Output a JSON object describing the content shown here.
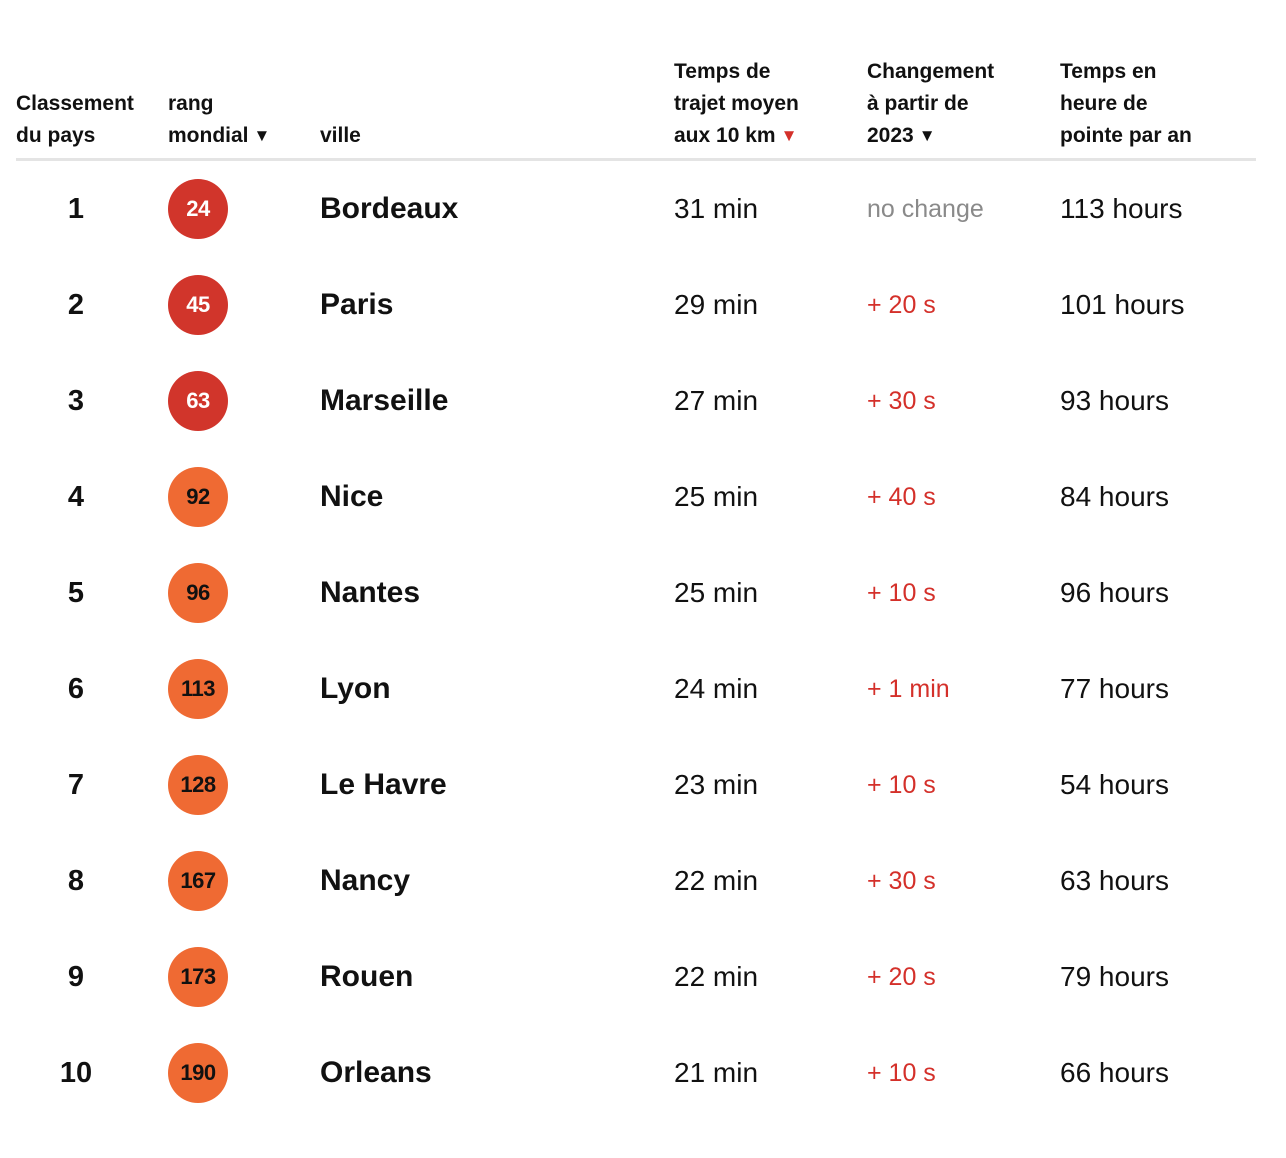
{
  "columns": {
    "country_rank": [
      "Classement",
      "du pays"
    ],
    "world_rank": [
      "rang",
      "mondial"
    ],
    "city": "ville",
    "travel_time": [
      "Temps de",
      "trajet moyen",
      "aux 10 km"
    ],
    "change": [
      "Changement",
      "à partir de",
      "2023"
    ],
    "peak_hours": [
      "Temps en",
      "heure de",
      "pointe par an"
    ]
  },
  "sort_arrow": "▼",
  "colors": {
    "badge_red": "#d1352b",
    "badge_orange": "#ef6a33",
    "increase_text": "#d4302a",
    "no_change_text": "#8a8a8a",
    "active_sort_arrow": "#d4302a"
  },
  "rows": [
    {
      "rank": "1",
      "world_rank": "24",
      "badge": "red",
      "city": "Bordeaux",
      "time": "31 min",
      "change": "no change",
      "change_type": "neutral",
      "peak": "113 hours"
    },
    {
      "rank": "2",
      "world_rank": "45",
      "badge": "red",
      "city": "Paris",
      "time": "29 min",
      "change": "+ 20 s",
      "change_type": "increase",
      "peak": "101 hours"
    },
    {
      "rank": "3",
      "world_rank": "63",
      "badge": "red",
      "city": "Marseille",
      "time": "27 min",
      "change": "+ 30 s",
      "change_type": "increase",
      "peak": "93 hours"
    },
    {
      "rank": "4",
      "world_rank": "92",
      "badge": "orange",
      "city": "Nice",
      "time": "25 min",
      "change": "+ 40 s",
      "change_type": "increase",
      "peak": "84 hours"
    },
    {
      "rank": "5",
      "world_rank": "96",
      "badge": "orange",
      "city": "Nantes",
      "time": "25 min",
      "change": "+ 10 s",
      "change_type": "increase",
      "peak": "96 hours"
    },
    {
      "rank": "6",
      "world_rank": "113",
      "badge": "orange",
      "city": "Lyon",
      "time": "24 min",
      "change": "+ 1 min",
      "change_type": "increase",
      "peak": "77 hours"
    },
    {
      "rank": "7",
      "world_rank": "128",
      "badge": "orange",
      "city": "Le Havre",
      "time": "23 min",
      "change": "+ 10 s",
      "change_type": "increase",
      "peak": "54 hours"
    },
    {
      "rank": "8",
      "world_rank": "167",
      "badge": "orange",
      "city": "Nancy",
      "time": "22 min",
      "change": "+ 30 s",
      "change_type": "increase",
      "peak": "63 hours"
    },
    {
      "rank": "9",
      "world_rank": "173",
      "badge": "orange",
      "city": "Rouen",
      "time": "22 min",
      "change": "+ 20 s",
      "change_type": "increase",
      "peak": "79 hours"
    },
    {
      "rank": "10",
      "world_rank": "190",
      "badge": "orange",
      "city": "Orleans",
      "time": "21 min",
      "change": "+ 10 s",
      "change_type": "increase",
      "peak": "66 hours"
    }
  ]
}
